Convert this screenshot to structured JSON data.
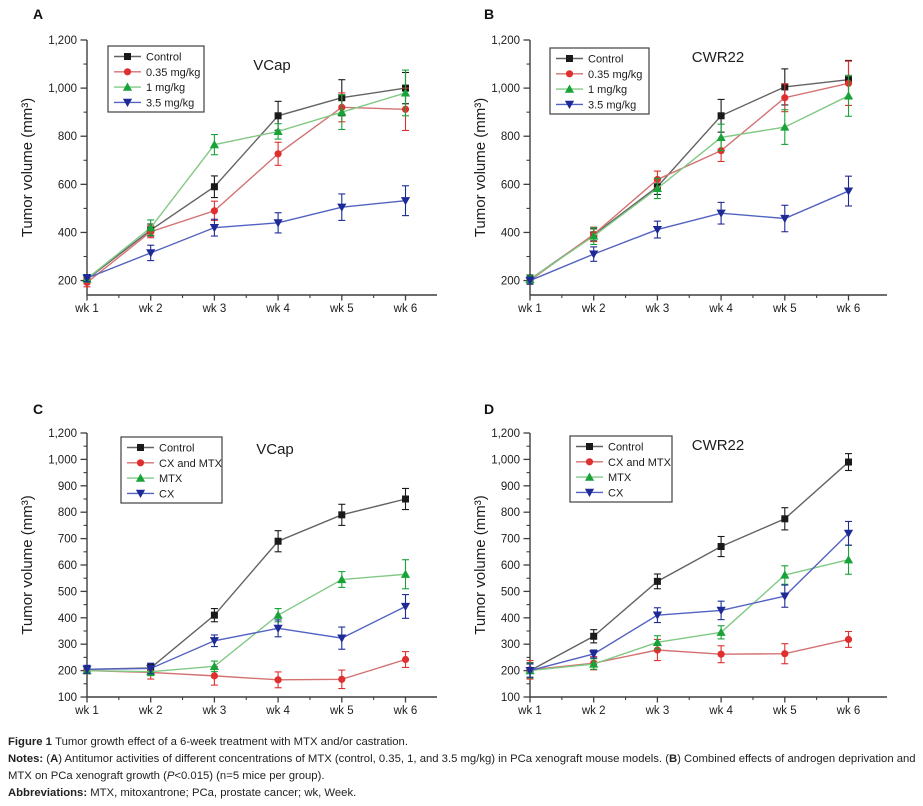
{
  "page": {
    "background": "#ffffff"
  },
  "panel_labels": {
    "a": "A",
    "b": "B",
    "c": "C",
    "d": "D"
  },
  "chart_data": [
    {
      "panel_label": "A",
      "type": "line",
      "title": "VCap",
      "ylabel": "Tumor volume (mm³)",
      "xlabel": "",
      "categories": [
        "wk 1",
        "wk 2",
        "wk 3",
        "wk 4",
        "wk 5",
        "wk 6"
      ],
      "ylim": [
        140,
        1200
      ],
      "yticks": [
        {
          "value": 200,
          "label": "200"
        },
        {
          "value": 400,
          "label": "400"
        },
        {
          "value": 600,
          "label": "600"
        },
        {
          "value": 800,
          "label": "800"
        },
        {
          "value": 1000,
          "label": "1,000"
        },
        {
          "value": 1200,
          "label": "1,200"
        }
      ],
      "grid": false,
      "legend_position": "top-left",
      "error_bars": true,
      "series": [
        {
          "name": "Control",
          "marker": "square",
          "marker_color": "#1a1a1a",
          "line_color": "#636363",
          "values": [
            205,
            410,
            590,
            885,
            960,
            1000
          ],
          "errors": [
            18,
            25,
            45,
            60,
            75,
            65
          ]
        },
        {
          "name": "0.35 mg/kg",
          "marker": "circle",
          "marker_color": "#e02f2f",
          "line_color": "#d47272",
          "values": [
            192,
            403,
            490,
            727,
            920,
            912
          ],
          "errors": [
            18,
            25,
            40,
            48,
            60,
            88
          ]
        },
        {
          "name": "1 mg/kg",
          "marker": "triangle-up",
          "marker_color": "#17a338",
          "line_color": "#82c985",
          "values": [
            208,
            420,
            765,
            820,
            900,
            980
          ],
          "errors": [
            15,
            32,
            42,
            32,
            72,
            95
          ]
        },
        {
          "name": "3.5 mg/kg",
          "marker": "triangle-down",
          "marker_color": "#1e2b96",
          "line_color": "#5262c2",
          "values": [
            210,
            315,
            420,
            440,
            505,
            532
          ],
          "errors": [
            15,
            32,
            35,
            42,
            55,
            62
          ]
        }
      ]
    },
    {
      "panel_label": "B",
      "type": "line",
      "title": "CWR22",
      "ylabel": "Tumor volume (mm³)",
      "xlabel": "",
      "categories": [
        "wk 1",
        "wk 2",
        "wk 3",
        "wk 4",
        "wk 5",
        "wk 6"
      ],
      "ylim": [
        140,
        1200
      ],
      "yticks": [
        {
          "value": 200,
          "label": "200"
        },
        {
          "value": 400,
          "label": "400"
        },
        {
          "value": 600,
          "label": "600"
        },
        {
          "value": 800,
          "label": "800"
        },
        {
          "value": 1000,
          "label": "1,000"
        },
        {
          "value": 1200,
          "label": "1,200"
        }
      ],
      "grid": false,
      "legend_position": "top-left",
      "error_bars": true,
      "series": [
        {
          "name": "Control",
          "marker": "square",
          "marker_color": "#1a1a1a",
          "line_color": "#636363",
          "values": [
            205,
            390,
            590,
            885,
            1005,
            1035
          ],
          "errors": [
            18,
            25,
            32,
            68,
            75,
            80
          ]
        },
        {
          "name": "0.35 mg/kg",
          "marker": "circle",
          "marker_color": "#e02f2f",
          "line_color": "#d47272",
          "values": [
            200,
            392,
            620,
            740,
            960,
            1020
          ],
          "errors": [
            15,
            30,
            35,
            45,
            58,
            92
          ]
        },
        {
          "name": "1 mg/kg",
          "marker": "triangle-up",
          "marker_color": "#17a338",
          "line_color": "#82c985",
          "values": [
            205,
            385,
            583,
            795,
            838,
            968
          ],
          "errors": [
            15,
            35,
            42,
            55,
            72,
            85
          ]
        },
        {
          "name": "3.5 mg/kg",
          "marker": "triangle-down",
          "marker_color": "#1e2b96",
          "line_color": "#5262c2",
          "values": [
            200,
            310,
            412,
            480,
            458,
            572
          ],
          "errors": [
            15,
            30,
            35,
            45,
            55,
            62
          ]
        }
      ]
    },
    {
      "panel_label": "C",
      "type": "line",
      "title": "VCap",
      "ylabel": "Tumor volume (mm³)",
      "xlabel": "",
      "categories": [
        "wk 1",
        "wk 2",
        "wk 3",
        "wk 4",
        "wk 5",
        "wk 6"
      ],
      "ylim": [
        100,
        1200
      ],
      "ylim_plot": [
        100,
        1100
      ],
      "yticks": [
        {
          "value": 100,
          "label": "100"
        },
        {
          "value": 200,
          "label": "200"
        },
        {
          "value": 300,
          "label": "300"
        },
        {
          "value": 400,
          "label": "400"
        },
        {
          "value": 500,
          "label": "500"
        },
        {
          "value": 600,
          "label": "600"
        },
        {
          "value": 700,
          "label": "700"
        },
        {
          "value": 800,
          "label": "800"
        },
        {
          "value": 900,
          "label": "900"
        },
        {
          "value": 1000,
          "label": "1,000"
        },
        {
          "value": 1200,
          "label": "1,200",
          "plot_value": 1100
        }
      ],
      "grid": false,
      "legend_position": "top-left",
      "error_bars": true,
      "series": [
        {
          "name": "Control",
          "marker": "square",
          "marker_color": "#1a1a1a",
          "line_color": "#636363",
          "values": [
            205,
            210,
            410,
            690,
            790,
            850
          ],
          "errors": [
            12,
            15,
            25,
            40,
            40,
            40
          ]
        },
        {
          "name": "CX and MTX",
          "marker": "circle",
          "marker_color": "#e02f2f",
          "line_color": "#d47272",
          "values": [
            200,
            193,
            180,
            165,
            167,
            242
          ],
          "errors": [
            12,
            25,
            35,
            30,
            35,
            30
          ]
        },
        {
          "name": "MTX",
          "marker": "triangle-up",
          "marker_color": "#17a338",
          "line_color": "#82c985",
          "values": [
            200,
            196,
            216,
            410,
            545,
            565
          ],
          "errors": [
            10,
            15,
            20,
            25,
            30,
            55
          ]
        },
        {
          "name": "CX",
          "marker": "triangle-down",
          "marker_color": "#1e2b96",
          "line_color": "#5262c2",
          "values": [
            205,
            208,
            313,
            360,
            323,
            443
          ],
          "errors": [
            15,
            20,
            22,
            32,
            42,
            45
          ]
        }
      ]
    },
    {
      "panel_label": "D",
      "type": "line",
      "title": "CWR22",
      "ylabel": "Tumor volume (mm³)",
      "xlabel": "",
      "categories": [
        "wk 1",
        "wk 2",
        "wk 3",
        "wk 4",
        "wk 5",
        "wk 6"
      ],
      "ylim": [
        100,
        1200
      ],
      "ylim_plot": [
        100,
        1100
      ],
      "yticks": [
        {
          "value": 100,
          "label": "100"
        },
        {
          "value": 200,
          "label": "200"
        },
        {
          "value": 300,
          "label": "300"
        },
        {
          "value": 400,
          "label": "400"
        },
        {
          "value": 500,
          "label": "500"
        },
        {
          "value": 600,
          "label": "600"
        },
        {
          "value": 700,
          "label": "700"
        },
        {
          "value": 800,
          "label": "800"
        },
        {
          "value": 900,
          "label": "900"
        },
        {
          "value": 1000,
          "label": "1,000"
        },
        {
          "value": 1200,
          "label": "1,200",
          "plot_value": 1100
        }
      ],
      "grid": false,
      "legend_position": "top-left",
      "error_bars": true,
      "series": [
        {
          "name": "Control",
          "marker": "square",
          "marker_color": "#1a1a1a",
          "line_color": "#636363",
          "values": [
            200,
            330,
            538,
            670,
            775,
            990
          ],
          "errors": [
            30,
            25,
            28,
            38,
            42,
            32
          ]
        },
        {
          "name": "CX and MTX",
          "marker": "circle",
          "marker_color": "#e02f2f",
          "line_color": "#d47272",
          "values": [
            203,
            228,
            278,
            262,
            264,
            318
          ],
          "errors": [
            35,
            25,
            40,
            32,
            38,
            30
          ]
        },
        {
          "name": "MTX",
          "marker": "triangle-up",
          "marker_color": "#17a338",
          "line_color": "#82c985",
          "values": [
            200,
            225,
            307,
            345,
            562,
            620
          ],
          "errors": [
            28,
            20,
            25,
            25,
            35,
            55
          ]
        },
        {
          "name": "CX",
          "marker": "triangle-down",
          "marker_color": "#1e2b96",
          "line_color": "#5262c2",
          "values": [
            200,
            263,
            410,
            428,
            482,
            720
          ],
          "errors": [
            25,
            15,
            28,
            35,
            42,
            45
          ]
        }
      ]
    }
  ],
  "caption": {
    "lines": [
      {
        "segments": [
          {
            "t": "Figure 1 ",
            "s": "bold"
          },
          {
            "t": "Tumor growth effect of a 6-week treatment with MTX and/or castration.",
            "s": ""
          }
        ]
      },
      {
        "segments": [
          {
            "t": "Notes: ",
            "s": "bold"
          },
          {
            "t": "(",
            "s": ""
          },
          {
            "t": "A",
            "s": "bold"
          },
          {
            "t": ") Antitumor activities of different concentrations of MTX (control, 0.35, 1, and 3.5 mg/kg) in PCa xenograft mouse models. (",
            "s": ""
          },
          {
            "t": "B",
            "s": "bold"
          },
          {
            "t": ") Combined effects of androgen deprivation and MTX on PCa xenograft growth (",
            "s": ""
          },
          {
            "t": "P",
            "s": "italic"
          },
          {
            "t": "<0.015) (n=5 mice per group).",
            "s": ""
          }
        ]
      },
      {
        "segments": [
          {
            "t": "Abbreviations: ",
            "s": "bold"
          },
          {
            "t": "MTX, mitoxantrone; PCa, prostate cancer; wk, Week.",
            "s": ""
          }
        ]
      }
    ]
  }
}
